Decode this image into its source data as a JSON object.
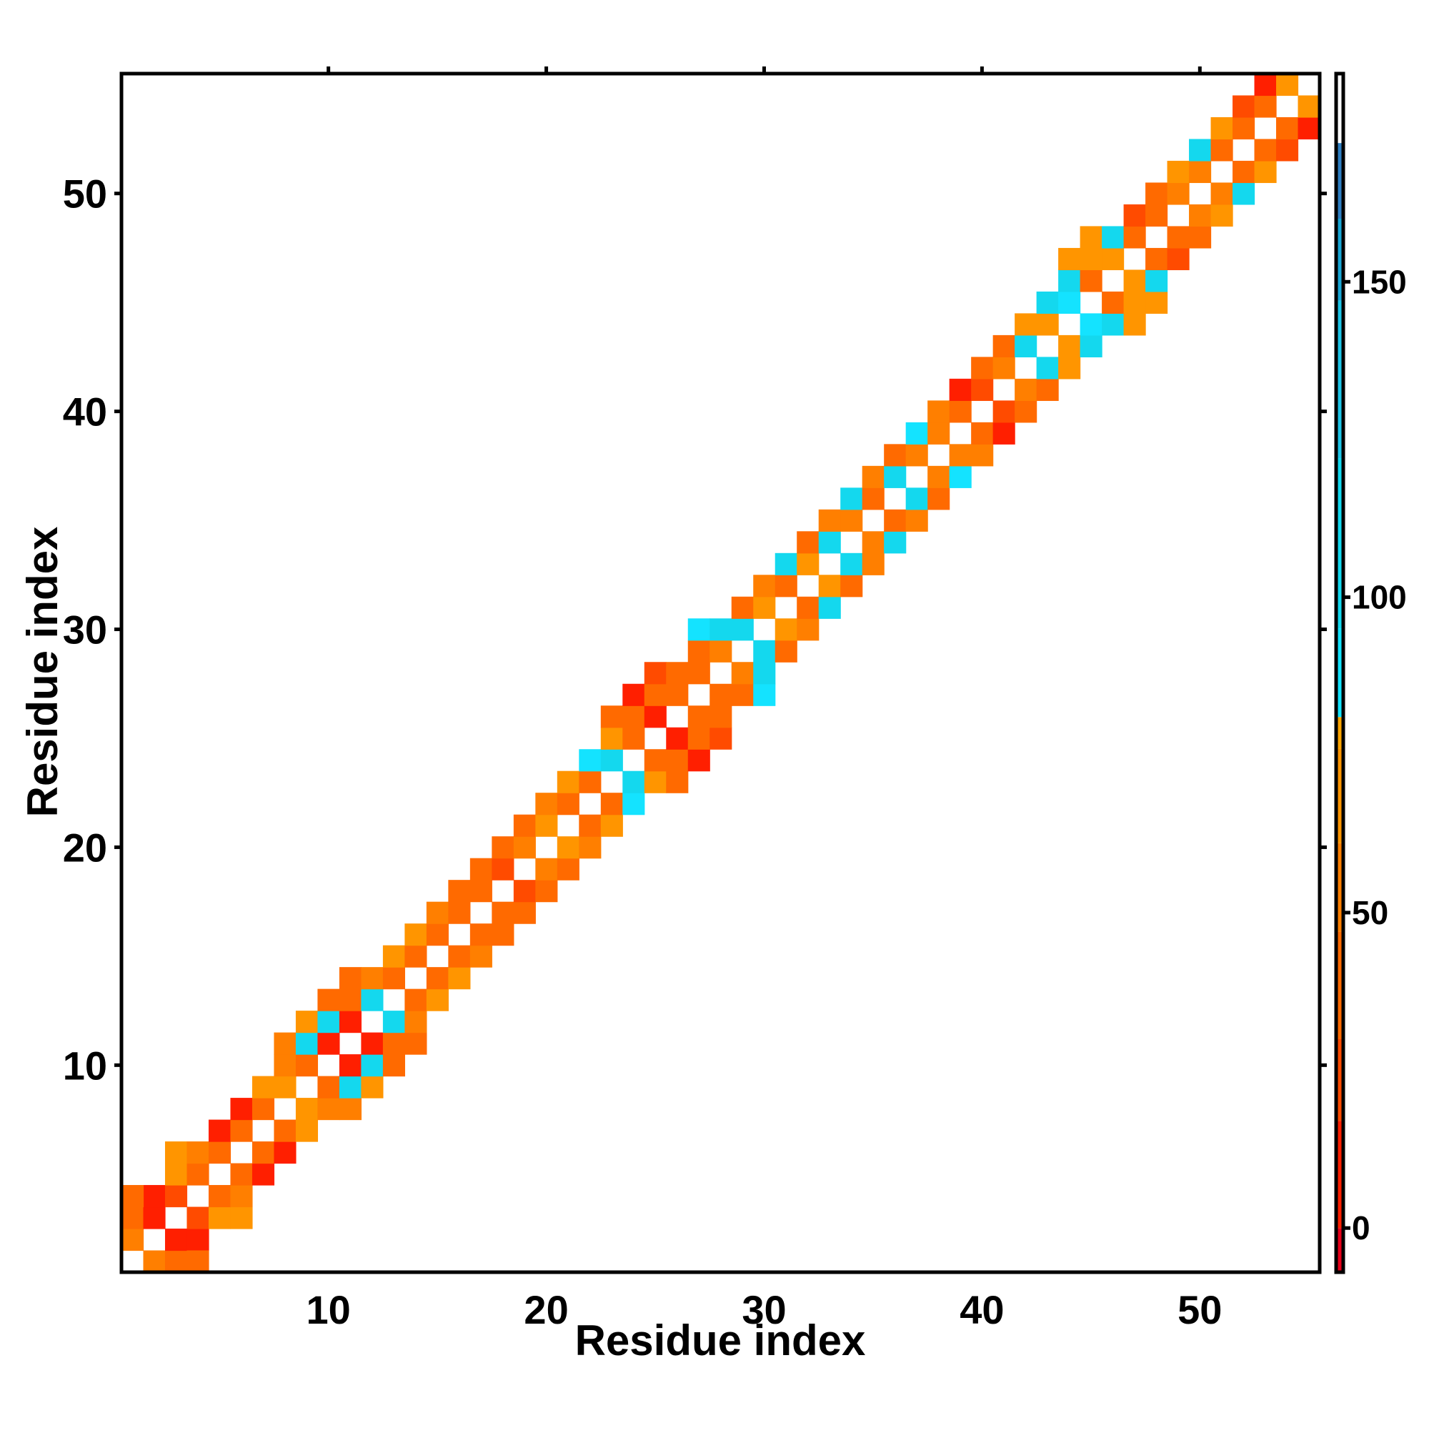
{
  "chart_data": {
    "type": "heatmap",
    "title": "",
    "xlabel": "Residue index",
    "ylabel": "Residue index",
    "xlim": [
      0.5,
      55.5
    ],
    "ylim": [
      0.5,
      55.5
    ],
    "x_ticks": [
      10,
      20,
      30,
      40,
      50
    ],
    "y_ticks": [
      10,
      20,
      30,
      40,
      50
    ],
    "colorbar": {
      "range": [
        -7,
        183
      ],
      "ticks": [
        0,
        50,
        100,
        150
      ],
      "tick_labels": [
        "0",
        "50",
        "100",
        "150"
      ],
      "bands": [
        {
          "from": -7,
          "to": 0,
          "color": "#e8001a"
        },
        {
          "from": 0,
          "to": 17,
          "color": "#ff1f00"
        },
        {
          "from": 17,
          "to": 30,
          "color": "#ff4b00"
        },
        {
          "from": 30,
          "to": 47,
          "color": "#ff6a00"
        },
        {
          "from": 47,
          "to": 61,
          "color": "#ff7f00"
        },
        {
          "from": 61,
          "to": 76,
          "color": "#ff9500"
        },
        {
          "from": 76,
          "to": 81,
          "color": "#ffa500"
        },
        {
          "from": 81,
          "to": 95,
          "color": "#14e3ff"
        },
        {
          "from": 95,
          "to": 122,
          "color": "#14d8ee"
        },
        {
          "from": 122,
          "to": 147,
          "color": "#1ec4e6"
        },
        {
          "from": 147,
          "to": 160,
          "color": "#1aa6d4"
        },
        {
          "from": 160,
          "to": 172,
          "color": "#2f7fc2"
        },
        {
          "from": 172,
          "to": 183,
          "color": "#ffffff"
        }
      ]
    },
    "diagonal_color": "#ffffff",
    "cells": [
      [
        1,
        2,
        60
      ],
      [
        2,
        1,
        60
      ],
      [
        1,
        3,
        35
      ],
      [
        3,
        1,
        35
      ],
      [
        2,
        3,
        5
      ],
      [
        3,
        2,
        5
      ],
      [
        2,
        4,
        10
      ],
      [
        4,
        2,
        10
      ],
      [
        1,
        4,
        30
      ],
      [
        4,
        1,
        30
      ],
      [
        3,
        4,
        20
      ],
      [
        4,
        3,
        20
      ],
      [
        3,
        5,
        65
      ],
      [
        5,
        3,
        65
      ],
      [
        3,
        6,
        65
      ],
      [
        6,
        3,
        65
      ],
      [
        4,
        5,
        40
      ],
      [
        5,
        4,
        40
      ],
      [
        4,
        6,
        50
      ],
      [
        6,
        4,
        50
      ],
      [
        5,
        6,
        35
      ],
      [
        6,
        5,
        35
      ],
      [
        5,
        7,
        10
      ],
      [
        7,
        5,
        10
      ],
      [
        6,
        7,
        30
      ],
      [
        7,
        6,
        30
      ],
      [
        6,
        8,
        8
      ],
      [
        8,
        6,
        8
      ],
      [
        7,
        8,
        40
      ],
      [
        8,
        7,
        40
      ],
      [
        7,
        9,
        70
      ],
      [
        9,
        7,
        70
      ],
      [
        8,
        9,
        75
      ],
      [
        9,
        8,
        75
      ],
      [
        8,
        10,
        60
      ],
      [
        10,
        8,
        60
      ],
      [
        8,
        11,
        60
      ],
      [
        11,
        8,
        60
      ],
      [
        9,
        10,
        45
      ],
      [
        10,
        9,
        45
      ],
      [
        9,
        11,
        110
      ],
      [
        11,
        9,
        110
      ],
      [
        9,
        12,
        70
      ],
      [
        12,
        9,
        70
      ],
      [
        10,
        11,
        5
      ],
      [
        11,
        10,
        5
      ],
      [
        10,
        12,
        100
      ],
      [
        12,
        10,
        100
      ],
      [
        10,
        13,
        45
      ],
      [
        13,
        10,
        45
      ],
      [
        11,
        12,
        5
      ],
      [
        12,
        11,
        5
      ],
      [
        11,
        13,
        45
      ],
      [
        13,
        11,
        45
      ],
      [
        11,
        14,
        35
      ],
      [
        14,
        11,
        35
      ],
      [
        12,
        13,
        100
      ],
      [
        13,
        12,
        100
      ],
      [
        12,
        14,
        50
      ],
      [
        14,
        12,
        50
      ],
      [
        13,
        14,
        40
      ],
      [
        14,
        13,
        40
      ],
      [
        13,
        15,
        65
      ],
      [
        15,
        13,
        65
      ],
      [
        14,
        15,
        35
      ],
      [
        15,
        14,
        35
      ],
      [
        14,
        16,
        70
      ],
      [
        16,
        14,
        70
      ],
      [
        15,
        16,
        30
      ],
      [
        16,
        15,
        30
      ],
      [
        15,
        17,
        60
      ],
      [
        17,
        15,
        60
      ],
      [
        16,
        17,
        45
      ],
      [
        17,
        16,
        45
      ],
      [
        16,
        18,
        35
      ],
      [
        18,
        16,
        35
      ],
      [
        17,
        18,
        30
      ],
      [
        18,
        17,
        30
      ],
      [
        17,
        19,
        40
      ],
      [
        19,
        17,
        40
      ],
      [
        18,
        19,
        25
      ],
      [
        19,
        18,
        25
      ],
      [
        18,
        20,
        35
      ],
      [
        20,
        18,
        35
      ],
      [
        19,
        20,
        60
      ],
      [
        20,
        19,
        60
      ],
      [
        19,
        21,
        40
      ],
      [
        21,
        19,
        40
      ],
      [
        20,
        21,
        70
      ],
      [
        21,
        20,
        70
      ],
      [
        20,
        22,
        60
      ],
      [
        22,
        20,
        60
      ],
      [
        21,
        22,
        35
      ],
      [
        22,
        21,
        35
      ],
      [
        21,
        23,
        65
      ],
      [
        23,
        21,
        65
      ],
      [
        22,
        23,
        40
      ],
      [
        23,
        22,
        40
      ],
      [
        22,
        24,
        85
      ],
      [
        24,
        22,
        85
      ],
      [
        23,
        24,
        100
      ],
      [
        24,
        23,
        100
      ],
      [
        23,
        25,
        70
      ],
      [
        25,
        23,
        70
      ],
      [
        23,
        26,
        30
      ],
      [
        26,
        23,
        30
      ],
      [
        24,
        25,
        45
      ],
      [
        25,
        24,
        45
      ],
      [
        24,
        26,
        35
      ],
      [
        26,
        24,
        35
      ],
      [
        24,
        27,
        10
      ],
      [
        27,
        24,
        10
      ],
      [
        25,
        26,
        5
      ],
      [
        26,
        25,
        5
      ],
      [
        25,
        27,
        40
      ],
      [
        27,
        25,
        40
      ],
      [
        25,
        28,
        20
      ],
      [
        28,
        25,
        20
      ],
      [
        26,
        27,
        35
      ],
      [
        27,
        26,
        35
      ],
      [
        26,
        28,
        30
      ],
      [
        28,
        26,
        30
      ],
      [
        27,
        28,
        40
      ],
      [
        28,
        27,
        40
      ],
      [
        27,
        29,
        30
      ],
      [
        29,
        27,
        30
      ],
      [
        27,
        30,
        85
      ],
      [
        30,
        27,
        85
      ],
      [
        28,
        29,
        60
      ],
      [
        29,
        28,
        60
      ],
      [
        28,
        30,
        100
      ],
      [
        30,
        28,
        100
      ],
      [
        29,
        30,
        100
      ],
      [
        30,
        29,
        100
      ],
      [
        29,
        31,
        45
      ],
      [
        31,
        29,
        45
      ],
      [
        30,
        31,
        70
      ],
      [
        31,
        30,
        70
      ],
      [
        30,
        32,
        55
      ],
      [
        32,
        30,
        55
      ],
      [
        31,
        32,
        40
      ],
      [
        32,
        31,
        40
      ],
      [
        31,
        33,
        110
      ],
      [
        33,
        31,
        110
      ],
      [
        32,
        33,
        65
      ],
      [
        33,
        32,
        65
      ],
      [
        32,
        34,
        45
      ],
      [
        34,
        32,
        45
      ],
      [
        33,
        34,
        120
      ],
      [
        34,
        33,
        120
      ],
      [
        33,
        35,
        60
      ],
      [
        35,
        33,
        60
      ],
      [
        34,
        35,
        50
      ],
      [
        35,
        34,
        50
      ],
      [
        34,
        36,
        120
      ],
      [
        36,
        34,
        120
      ],
      [
        35,
        36,
        45
      ],
      [
        36,
        35,
        45
      ],
      [
        35,
        37,
        60
      ],
      [
        37,
        35,
        60
      ],
      [
        36,
        37,
        120
      ],
      [
        37,
        36,
        120
      ],
      [
        36,
        38,
        40
      ],
      [
        38,
        36,
        40
      ],
      [
        37,
        38,
        50
      ],
      [
        38,
        37,
        50
      ],
      [
        37,
        39,
        85
      ],
      [
        39,
        37,
        85
      ],
      [
        38,
        39,
        50
      ],
      [
        39,
        38,
        50
      ],
      [
        38,
        40,
        60
      ],
      [
        40,
        38,
        60
      ],
      [
        39,
        40,
        40
      ],
      [
        40,
        39,
        40
      ],
      [
        39,
        41,
        10
      ],
      [
        41,
        39,
        10
      ],
      [
        40,
        41,
        20
      ],
      [
        41,
        40,
        20
      ],
      [
        40,
        42,
        45
      ],
      [
        42,
        40,
        45
      ],
      [
        41,
        42,
        60
      ],
      [
        42,
        41,
        60
      ],
      [
        41,
        43,
        30
      ],
      [
        43,
        41,
        30
      ],
      [
        42,
        43,
        100
      ],
      [
        43,
        42,
        100
      ],
      [
        42,
        44,
        70
      ],
      [
        44,
        42,
        70
      ],
      [
        43,
        44,
        65
      ],
      [
        44,
        43,
        65
      ],
      [
        43,
        45,
        120
      ],
      [
        45,
        43,
        120
      ],
      [
        44,
        45,
        85
      ],
      [
        45,
        44,
        85
      ],
      [
        44,
        46,
        120
      ],
      [
        46,
        44,
        120
      ],
      [
        44,
        47,
        65
      ],
      [
        47,
        44,
        65
      ],
      [
        45,
        46,
        40
      ],
      [
        46,
        45,
        40
      ],
      [
        45,
        47,
        65
      ],
      [
        47,
        45,
        65
      ],
      [
        45,
        48,
        65
      ],
      [
        48,
        45,
        65
      ],
      [
        46,
        47,
        65
      ],
      [
        47,
        46,
        65
      ],
      [
        46,
        48,
        120
      ],
      [
        48,
        46,
        120
      ],
      [
        47,
        48,
        30
      ],
      [
        48,
        47,
        30
      ],
      [
        47,
        49,
        20
      ],
      [
        49,
        47,
        20
      ],
      [
        48,
        49,
        40
      ],
      [
        49,
        48,
        40
      ],
      [
        48,
        50,
        30
      ],
      [
        50,
        48,
        30
      ],
      [
        49,
        50,
        60
      ],
      [
        50,
        49,
        60
      ],
      [
        49,
        51,
        65
      ],
      [
        51,
        49,
        65
      ],
      [
        50,
        51,
        55
      ],
      [
        51,
        50,
        55
      ],
      [
        50,
        52,
        110
      ],
      [
        52,
        50,
        110
      ],
      [
        51,
        52,
        30
      ],
      [
        52,
        51,
        30
      ],
      [
        51,
        53,
        70
      ],
      [
        53,
        51,
        70
      ],
      [
        52,
        53,
        45
      ],
      [
        53,
        52,
        45
      ],
      [
        52,
        54,
        20
      ],
      [
        54,
        52,
        20
      ],
      [
        53,
        54,
        40
      ],
      [
        54,
        53,
        40
      ],
      [
        53,
        55,
        5
      ],
      [
        55,
        53,
        5
      ],
      [
        54,
        55,
        65
      ],
      [
        55,
        54,
        65
      ]
    ]
  }
}
